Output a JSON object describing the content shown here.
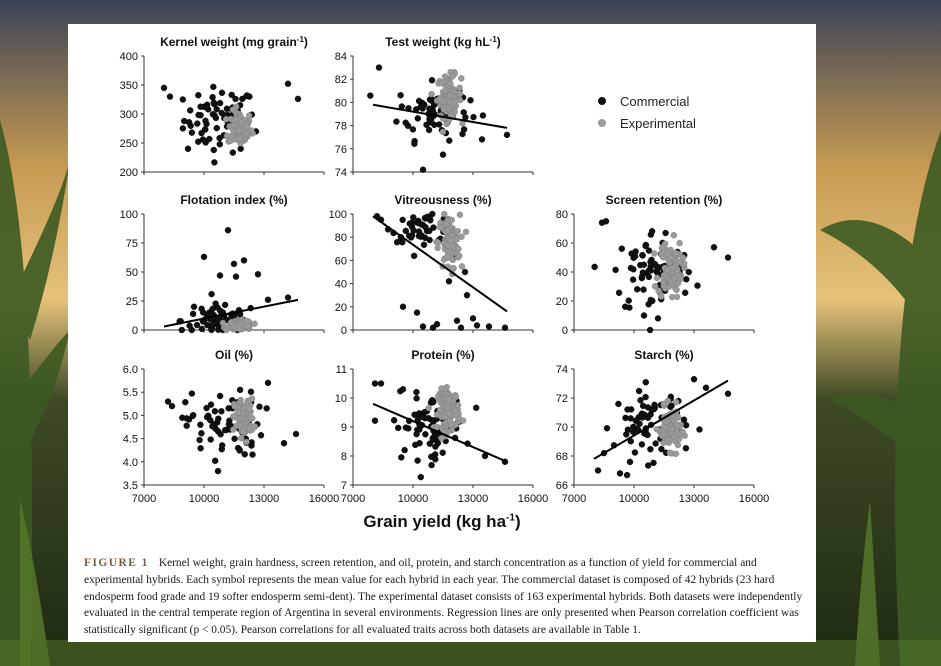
{
  "figure": {
    "xaxis_title": "Grain yield (kg ha",
    "xaxis_title_sup": "-1",
    "xaxis_title_end": ")",
    "caption_label": "FIGURE 1",
    "caption_text": "Kernel weight, grain hardness, screen retention, and oil, protein, and starch concentration as a function of yield for commercial and experimental hybrids. Each symbol represents the mean value for each hybrid in each year. The commercial dataset is composed of 42 hybrids (23 hard endosperm food grade and 19 softer endosperm semi-dent). The experimental dataset consists of 163 experimental hybrids. Both datasets were independently evaluated in the central temperate region of Argentina in several environments. Regression lines are only presented when Pearson correlation coefficient was statistically significant (p < 0.05). Pearson correlations for all evaluated traits across both datasets are available in Table 1."
  },
  "legend": [
    {
      "name": "Commercial",
      "color": "#111111"
    },
    {
      "name": "Experimental",
      "color": "#9a9a9a"
    }
  ],
  "chart_data": [
    {
      "type": "scatter",
      "title": "Kernel weight (mg grain",
      "title_sup": "-1",
      "title_end": ")",
      "xlim": [
        7000,
        16000
      ],
      "ylim": [
        200,
        400
      ],
      "yticks": [
        "200",
        "250",
        "300",
        "350",
        "400"
      ],
      "xticks": [],
      "series": [
        {
          "name": "Commercial",
          "center": [
            10800,
            290
          ],
          "spread": [
            1500,
            28
          ],
          "n": 70,
          "points": [
            [
              8000,
              345
            ],
            [
              8300,
              330
            ],
            [
              14200,
              352
            ],
            [
              14700,
              326
            ],
            [
              9200,
              240
            ],
            [
              12600,
              270
            ]
          ]
        },
        {
          "name": "Experimental",
          "center": [
            11800,
            275
          ],
          "spread": [
            500,
            15
          ],
          "n": 90
        }
      ],
      "regression": null
    },
    {
      "type": "scatter",
      "title": "Test weight (kg hL",
      "title_sup": "-1",
      "title_end": ")",
      "xlim": [
        7000,
        16000
      ],
      "ylim": [
        74,
        84
      ],
      "yticks": [
        "74",
        "76",
        "78",
        "80",
        "82",
        "84"
      ],
      "xticks": [],
      "series": [
        {
          "name": "Commercial",
          "center": [
            11000,
            79.2
          ],
          "spread": [
            1500,
            1.2
          ],
          "n": 70,
          "points": [
            [
              8300,
              83
            ],
            [
              10500,
              74.2
            ],
            [
              11500,
              75.5
            ],
            [
              14700,
              77.2
            ]
          ]
        },
        {
          "name": "Experimental",
          "center": [
            11800,
            80.5
          ],
          "spread": [
            500,
            0.9
          ],
          "n": 90
        }
      ],
      "regression": [
        [
          8000,
          79.8
        ],
        [
          14700,
          77.8
        ]
      ]
    },
    {
      "type": "scatter",
      "title": "Flotation index (%)",
      "title_sup": "",
      "title_end": "",
      "xlim": [
        7000,
        16000
      ],
      "ylim": [
        0,
        100
      ],
      "yticks": [
        "0",
        "25",
        "50",
        "75",
        "100"
      ],
      "xticks": [],
      "series": [
        {
          "name": "Commercial",
          "center": [
            10800,
            8
          ],
          "spread": [
            1600,
            7
          ],
          "n": 70,
          "points": [
            [
              11200,
              86
            ],
            [
              10000,
              63
            ],
            [
              11500,
              57
            ],
            [
              12000,
              60
            ],
            [
              12700,
              48
            ],
            [
              10800,
              47
            ],
            [
              11600,
              46
            ],
            [
              14200,
              28
            ],
            [
              13200,
              26
            ],
            [
              9500,
              20
            ]
          ]
        },
        {
          "name": "Experimental",
          "center": [
            11800,
            4
          ],
          "spread": [
            500,
            2
          ],
          "n": 90
        }
      ],
      "regression": [
        [
          8000,
          3
        ],
        [
          14700,
          26
        ]
      ]
    },
    {
      "type": "scatter",
      "title": "Vitreousness (%)",
      "title_sup": "",
      "title_end": "",
      "xlim": [
        7000,
        16000
      ],
      "ylim": [
        0,
        100
      ],
      "yticks": [
        "0",
        "20",
        "40",
        "60",
        "80",
        "100"
      ],
      "xticks": [],
      "series": [
        {
          "name": "Commercial",
          "center": [
            10500,
            88
          ],
          "spread": [
            1300,
            6
          ],
          "n": 45,
          "points": [
            [
              8200,
              98
            ],
            [
              8400,
              95
            ],
            [
              9500,
              20
            ],
            [
              10200,
              15
            ],
            [
              11200,
              5
            ],
            [
              12200,
              8
            ],
            [
              13200,
              4
            ],
            [
              13800,
              3
            ],
            [
              14600,
              2
            ],
            [
              12700,
              30
            ],
            [
              11800,
              42
            ],
            [
              12000,
              65
            ],
            [
              12600,
              50
            ],
            [
              11000,
              2
            ],
            [
              12400,
              2
            ],
            [
              10500,
              3
            ],
            [
              13000,
              10
            ]
          ]
        },
        {
          "name": "Experimental",
          "center": [
            11800,
            75
          ],
          "spread": [
            450,
            12
          ],
          "n": 90
        }
      ],
      "regression": [
        [
          8000,
          98
        ],
        [
          14700,
          16
        ]
      ]
    },
    {
      "type": "scatter",
      "title": "Screen retention (%)",
      "title_sup": "",
      "title_end": "",
      "xlim": [
        7000,
        16000
      ],
      "ylim": [
        0,
        80
      ],
      "yticks": [
        "0",
        "20",
        "40",
        "60",
        "80"
      ],
      "xticks": [],
      "series": [
        {
          "name": "Commercial",
          "center": [
            11000,
            40
          ],
          "spread": [
            1700,
            15
          ],
          "n": 75,
          "points": [
            [
              8400,
              74
            ],
            [
              8600,
              75
            ],
            [
              14700,
              50
            ],
            [
              14000,
              57
            ],
            [
              10500,
              10
            ],
            [
              11200,
              8
            ]
          ]
        },
        {
          "name": "Experimental",
          "center": [
            11800,
            42
          ],
          "spread": [
            500,
            10
          ],
          "n": 90
        }
      ],
      "regression": null
    },
    {
      "type": "scatter",
      "title": "Oil (%)",
      "title_sup": "",
      "title_end": "",
      "xlim": [
        7000,
        16000
      ],
      "ylim": [
        3.5,
        6
      ],
      "yticks": [
        "3.5",
        "4.0",
        "4.5",
        "5.0",
        "5.5",
        "6.0"
      ],
      "xticks": [
        "7000",
        "10000",
        "13000",
        "16000"
      ],
      "series": [
        {
          "name": "Commercial",
          "center": [
            11000,
            4.8
          ],
          "spread": [
            1600,
            0.35
          ],
          "n": 75,
          "points": [
            [
              8200,
              5.3
            ],
            [
              8400,
              5.2
            ],
            [
              10700,
              3.8
            ],
            [
              13200,
              5.7
            ],
            [
              14600,
              4.6
            ],
            [
              14000,
              4.4
            ]
          ]
        },
        {
          "name": "Experimental",
          "center": [
            12000,
            4.95
          ],
          "spread": [
            400,
            0.2
          ],
          "n": 90
        }
      ],
      "regression": null
    },
    {
      "type": "scatter",
      "title": "Protein (%)",
      "title_sup": "",
      "title_end": "",
      "xlim": [
        7000,
        16000
      ],
      "ylim": [
        7,
        11
      ],
      "yticks": [
        "7",
        "8",
        "9",
        "10",
        "11"
      ],
      "xticks": [
        "7000",
        "10000",
        "13000",
        "16000"
      ],
      "series": [
        {
          "name": "Commercial",
          "center": [
            10800,
            9.0
          ],
          "spread": [
            1500,
            0.55
          ],
          "n": 75,
          "points": [
            [
              8100,
              10.5
            ],
            [
              8400,
              10.5
            ],
            [
              14600,
              7.8
            ],
            [
              13600,
              8.0
            ],
            [
              9500,
              10.3
            ]
          ]
        },
        {
          "name": "Experimental",
          "center": [
            11800,
            9.6
          ],
          "spread": [
            450,
            0.35
          ],
          "n": 90
        }
      ],
      "regression": [
        [
          8000,
          9.8
        ],
        [
          14700,
          7.8
        ]
      ]
    },
    {
      "type": "scatter",
      "title": "Starch (%)",
      "title_sup": "",
      "title_end": "",
      "xlim": [
        7000,
        16000
      ],
      "ylim": [
        66,
        74
      ],
      "yticks": [
        "66",
        "68",
        "70",
        "72",
        "74"
      ],
      "xticks": [
        "7000",
        "10000",
        "13000",
        "16000"
      ],
      "series": [
        {
          "name": "Commercial",
          "center": [
            10800,
            70.2
          ],
          "spread": [
            1500,
            1.2
          ],
          "n": 75,
          "points": [
            [
              8200,
              67
            ],
            [
              8500,
              68.2
            ],
            [
              14700,
              72.3
            ],
            [
              13000,
              73.3
            ],
            [
              13600,
              72.7
            ],
            [
              9300,
              66.8
            ]
          ]
        },
        {
          "name": "Experimental",
          "center": [
            11800,
            69.9
          ],
          "spread": [
            450,
            0.7
          ],
          "n": 90
        }
      ],
      "regression": [
        [
          8000,
          67.8
        ],
        [
          14700,
          73.2
        ]
      ]
    }
  ]
}
